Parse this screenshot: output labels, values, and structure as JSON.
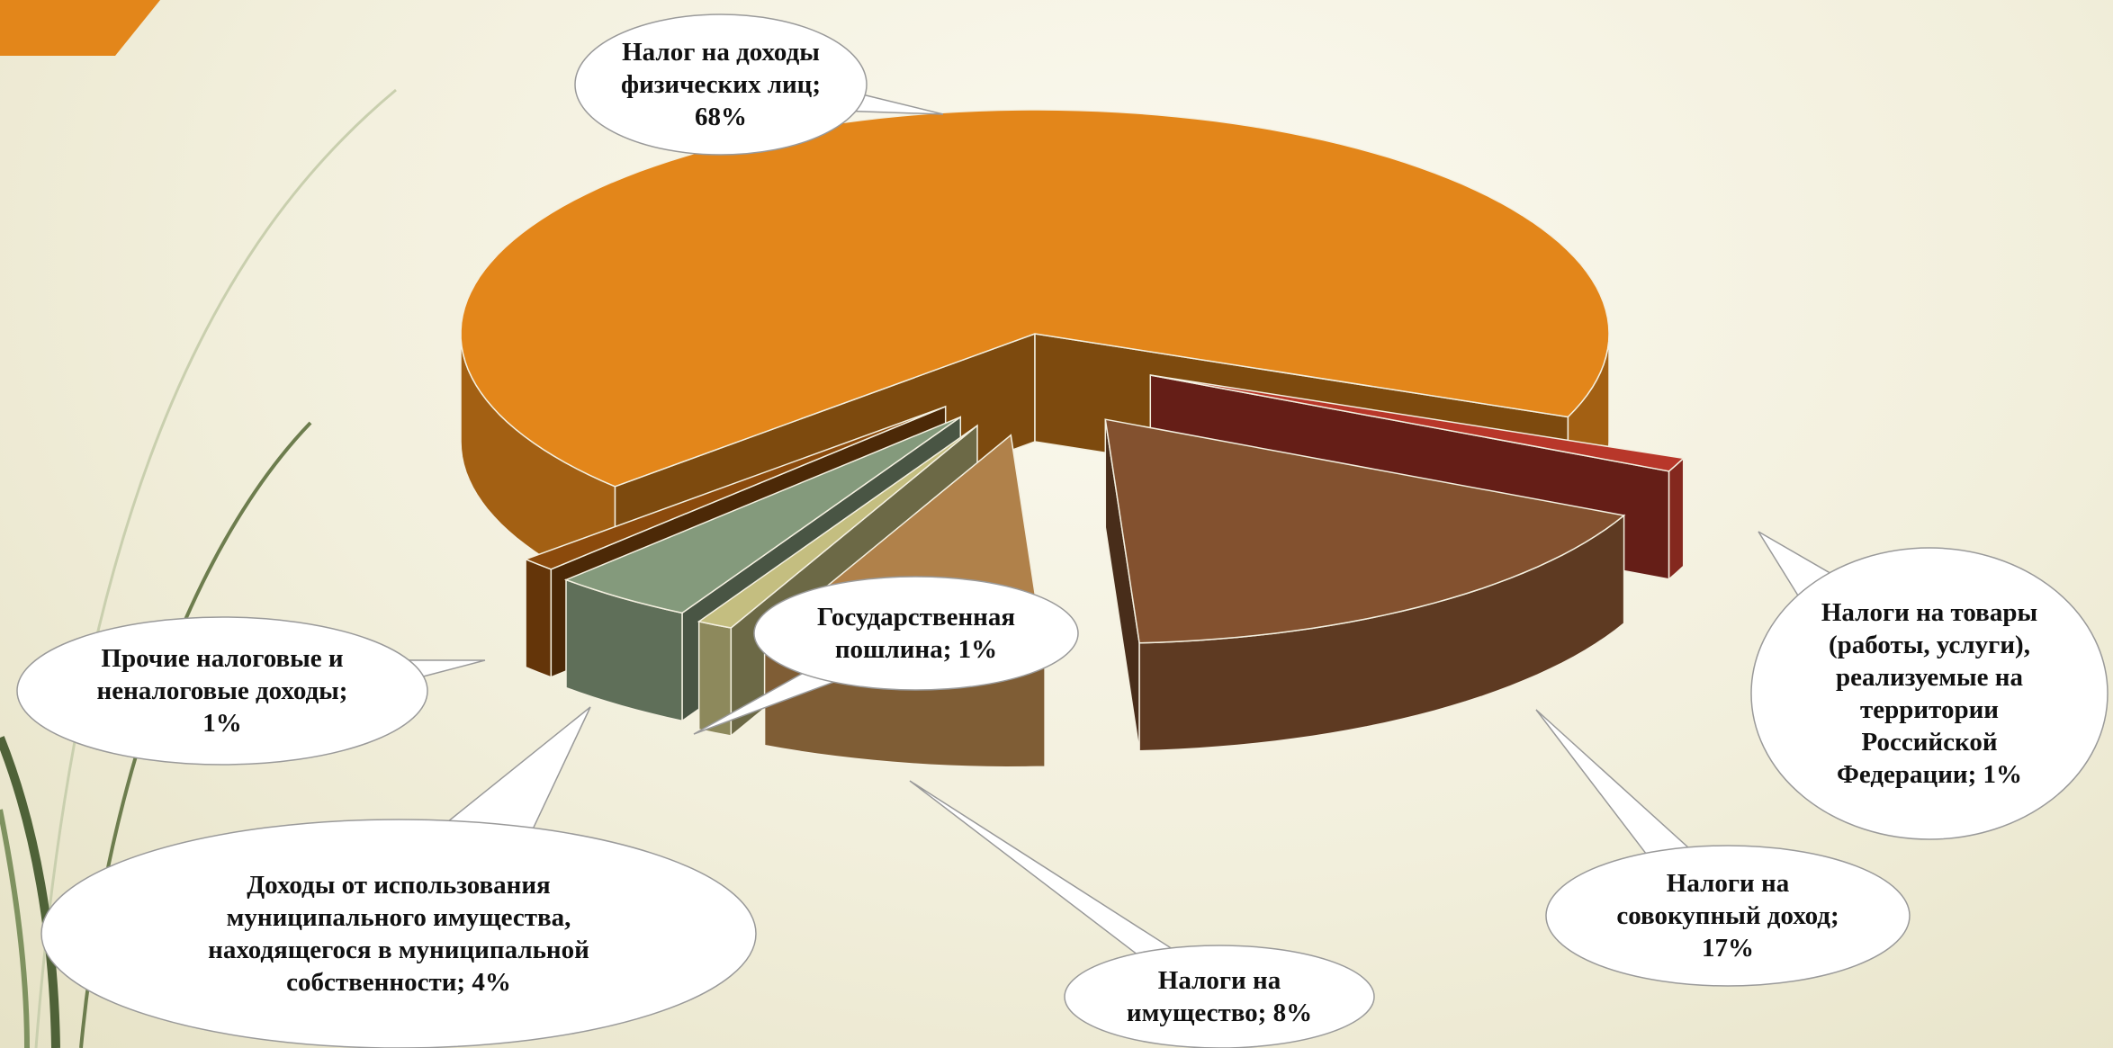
{
  "chart_data": {
    "type": "pie",
    "categories": [
      "Налог на доходы физических лиц;",
      "Налоги на товары (работы, услуги), реализуемые на территории Российской Федерации;",
      "Налоги на совокупный доход;",
      "Налоги на имущество;",
      "Государственная пошлина;",
      "Доходы от использования муниципального имущества, находящегося в муниципальной собственности;",
      "Прочие налоговые и неналоговые доходы;"
    ],
    "values": [
      68,
      1,
      17,
      8,
      1,
      4,
      1
    ],
    "value_labels": [
      "68%",
      "1%",
      "17%",
      "8%",
      "1%",
      "4%",
      "1%"
    ],
    "colors": [
      "#e3861a",
      "#b8372a",
      "#83512f",
      "#b0814a",
      "#c4be80",
      "#849a7c",
      "#8b4a0c"
    ]
  }
}
